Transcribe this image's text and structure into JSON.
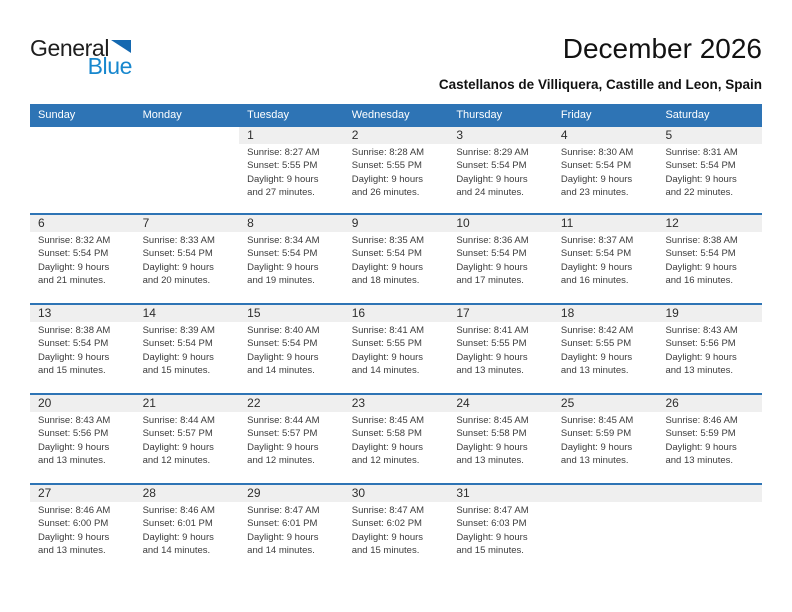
{
  "logo": {
    "part1": "General",
    "part2": "Blue"
  },
  "header": {
    "title": "December 2026",
    "subtitle": "Castellanos de Villiquera, Castille and Leon, Spain"
  },
  "colors": {
    "header_blue": "#2E74B5",
    "separator_blue": "#2E74B5",
    "band_gray": "#EFEFEF",
    "logo_text_blue": "#1787CE",
    "logo_triangle_blue": "#1468B0"
  },
  "calendar": {
    "weekday_headers": [
      "Sunday",
      "Monday",
      "Tuesday",
      "Wednesday",
      "Thursday",
      "Friday",
      "Saturday"
    ],
    "weeks": [
      [
        null,
        null,
        {
          "day": "1",
          "sunrise": "Sunrise: 8:27 AM",
          "sunset": "Sunset: 5:55 PM",
          "daylight": [
            "Daylight: 9 hours",
            "and 27 minutes."
          ]
        },
        {
          "day": "2",
          "sunrise": "Sunrise: 8:28 AM",
          "sunset": "Sunset: 5:55 PM",
          "daylight": [
            "Daylight: 9 hours",
            "and 26 minutes."
          ]
        },
        {
          "day": "3",
          "sunrise": "Sunrise: 8:29 AM",
          "sunset": "Sunset: 5:54 PM",
          "daylight": [
            "Daylight: 9 hours",
            "and 24 minutes."
          ]
        },
        {
          "day": "4",
          "sunrise": "Sunrise: 8:30 AM",
          "sunset": "Sunset: 5:54 PM",
          "daylight": [
            "Daylight: 9 hours",
            "and 23 minutes."
          ]
        },
        {
          "day": "5",
          "sunrise": "Sunrise: 8:31 AM",
          "sunset": "Sunset: 5:54 PM",
          "daylight": [
            "Daylight: 9 hours",
            "and 22 minutes."
          ]
        }
      ],
      [
        {
          "day": "6",
          "sunrise": "Sunrise: 8:32 AM",
          "sunset": "Sunset: 5:54 PM",
          "daylight": [
            "Daylight: 9 hours",
            "and 21 minutes."
          ]
        },
        {
          "day": "7",
          "sunrise": "Sunrise: 8:33 AM",
          "sunset": "Sunset: 5:54 PM",
          "daylight": [
            "Daylight: 9 hours",
            "and 20 minutes."
          ]
        },
        {
          "day": "8",
          "sunrise": "Sunrise: 8:34 AM",
          "sunset": "Sunset: 5:54 PM",
          "daylight": [
            "Daylight: 9 hours",
            "and 19 minutes."
          ]
        },
        {
          "day": "9",
          "sunrise": "Sunrise: 8:35 AM",
          "sunset": "Sunset: 5:54 PM",
          "daylight": [
            "Daylight: 9 hours",
            "and 18 minutes."
          ]
        },
        {
          "day": "10",
          "sunrise": "Sunrise: 8:36 AM",
          "sunset": "Sunset: 5:54 PM",
          "daylight": [
            "Daylight: 9 hours",
            "and 17 minutes."
          ]
        },
        {
          "day": "11",
          "sunrise": "Sunrise: 8:37 AM",
          "sunset": "Sunset: 5:54 PM",
          "daylight": [
            "Daylight: 9 hours",
            "and 16 minutes."
          ]
        },
        {
          "day": "12",
          "sunrise": "Sunrise: 8:38 AM",
          "sunset": "Sunset: 5:54 PM",
          "daylight": [
            "Daylight: 9 hours",
            "and 16 minutes."
          ]
        }
      ],
      [
        {
          "day": "13",
          "sunrise": "Sunrise: 8:38 AM",
          "sunset": "Sunset: 5:54 PM",
          "daylight": [
            "Daylight: 9 hours",
            "and 15 minutes."
          ]
        },
        {
          "day": "14",
          "sunrise": "Sunrise: 8:39 AM",
          "sunset": "Sunset: 5:54 PM",
          "daylight": [
            "Daylight: 9 hours",
            "and 15 minutes."
          ]
        },
        {
          "day": "15",
          "sunrise": "Sunrise: 8:40 AM",
          "sunset": "Sunset: 5:54 PM",
          "daylight": [
            "Daylight: 9 hours",
            "and 14 minutes."
          ]
        },
        {
          "day": "16",
          "sunrise": "Sunrise: 8:41 AM",
          "sunset": "Sunset: 5:55 PM",
          "daylight": [
            "Daylight: 9 hours",
            "and 14 minutes."
          ]
        },
        {
          "day": "17",
          "sunrise": "Sunrise: 8:41 AM",
          "sunset": "Sunset: 5:55 PM",
          "daylight": [
            "Daylight: 9 hours",
            "and 13 minutes."
          ]
        },
        {
          "day": "18",
          "sunrise": "Sunrise: 8:42 AM",
          "sunset": "Sunset: 5:55 PM",
          "daylight": [
            "Daylight: 9 hours",
            "and 13 minutes."
          ]
        },
        {
          "day": "19",
          "sunrise": "Sunrise: 8:43 AM",
          "sunset": "Sunset: 5:56 PM",
          "daylight": [
            "Daylight: 9 hours",
            "and 13 minutes."
          ]
        }
      ],
      [
        {
          "day": "20",
          "sunrise": "Sunrise: 8:43 AM",
          "sunset": "Sunset: 5:56 PM",
          "daylight": [
            "Daylight: 9 hours",
            "and 13 minutes."
          ]
        },
        {
          "day": "21",
          "sunrise": "Sunrise: 8:44 AM",
          "sunset": "Sunset: 5:57 PM",
          "daylight": [
            "Daylight: 9 hours",
            "and 12 minutes."
          ]
        },
        {
          "day": "22",
          "sunrise": "Sunrise: 8:44 AM",
          "sunset": "Sunset: 5:57 PM",
          "daylight": [
            "Daylight: 9 hours",
            "and 12 minutes."
          ]
        },
        {
          "day": "23",
          "sunrise": "Sunrise: 8:45 AM",
          "sunset": "Sunset: 5:58 PM",
          "daylight": [
            "Daylight: 9 hours",
            "and 12 minutes."
          ]
        },
        {
          "day": "24",
          "sunrise": "Sunrise: 8:45 AM",
          "sunset": "Sunset: 5:58 PM",
          "daylight": [
            "Daylight: 9 hours",
            "and 13 minutes."
          ]
        },
        {
          "day": "25",
          "sunrise": "Sunrise: 8:45 AM",
          "sunset": "Sunset: 5:59 PM",
          "daylight": [
            "Daylight: 9 hours",
            "and 13 minutes."
          ]
        },
        {
          "day": "26",
          "sunrise": "Sunrise: 8:46 AM",
          "sunset": "Sunset: 5:59 PM",
          "daylight": [
            "Daylight: 9 hours",
            "and 13 minutes."
          ]
        }
      ],
      [
        {
          "day": "27",
          "sunrise": "Sunrise: 8:46 AM",
          "sunset": "Sunset: 6:00 PM",
          "daylight": [
            "Daylight: 9 hours",
            "and 13 minutes."
          ]
        },
        {
          "day": "28",
          "sunrise": "Sunrise: 8:46 AM",
          "sunset": "Sunset: 6:01 PM",
          "daylight": [
            "Daylight: 9 hours",
            "and 14 minutes."
          ]
        },
        {
          "day": "29",
          "sunrise": "Sunrise: 8:47 AM",
          "sunset": "Sunset: 6:01 PM",
          "daylight": [
            "Daylight: 9 hours",
            "and 14 minutes."
          ]
        },
        {
          "day": "30",
          "sunrise": "Sunrise: 8:47 AM",
          "sunset": "Sunset: 6:02 PM",
          "daylight": [
            "Daylight: 9 hours",
            "and 15 minutes."
          ]
        },
        {
          "day": "31",
          "sunrise": "Sunrise: 8:47 AM",
          "sunset": "Sunset: 6:03 PM",
          "daylight": [
            "Daylight: 9 hours",
            "and 15 minutes."
          ]
        },
        {
          "blank_band": true
        },
        {
          "blank_band": true
        }
      ]
    ]
  }
}
